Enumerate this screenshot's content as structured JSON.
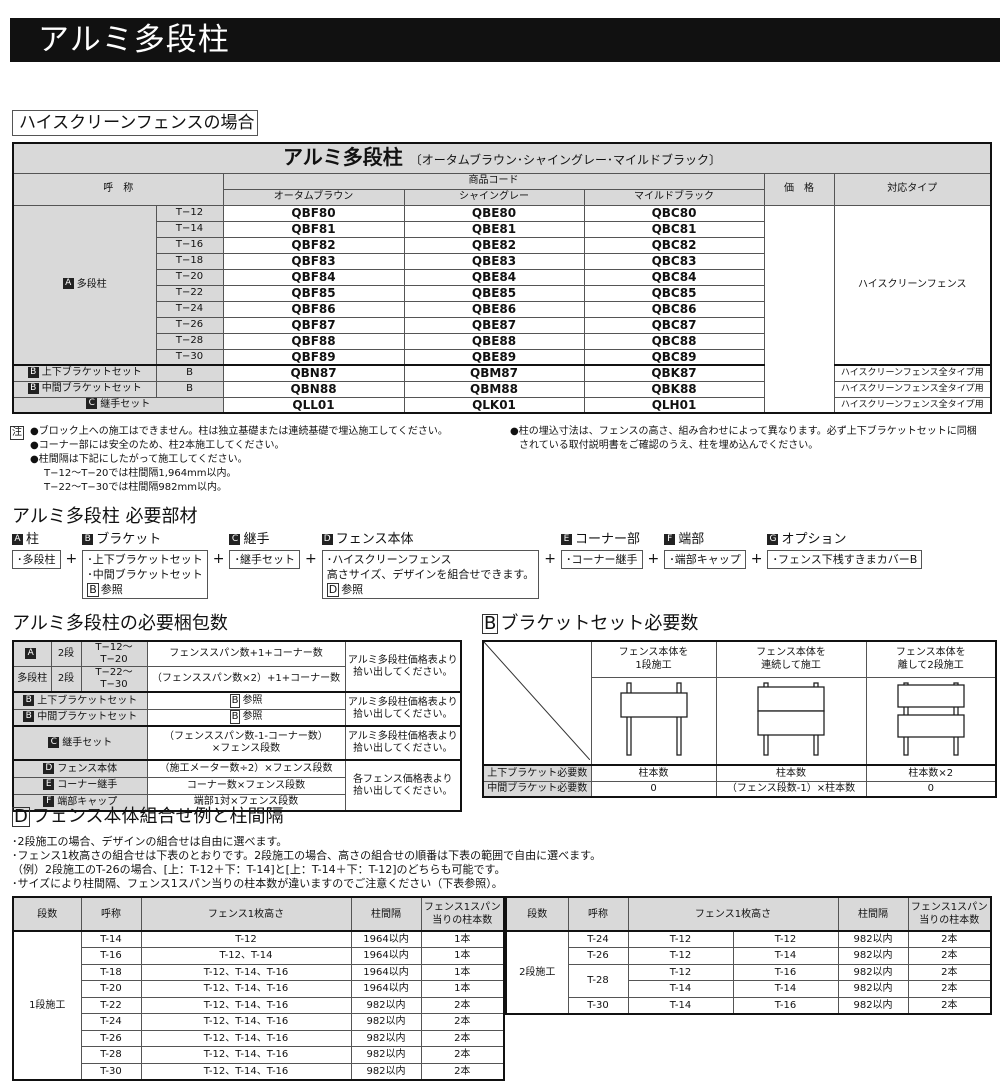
{
  "page_title": "アルミ多段柱",
  "subheading": "ハイスクリーンフェンスの場合",
  "main_table": {
    "title": "アルミ多段柱",
    "title_colors": "〔オータムブラウン･シャイングレー･マイルドブラック〕",
    "header_name": "呼　称",
    "header_code": "商品コード",
    "header_colors": [
      "オータムブラウン",
      "シャイングレー",
      "マイルドブラック"
    ],
    "header_price": "価　格",
    "header_type": "対応タイプ",
    "post_badge": "A",
    "post_label": "多段柱",
    "post_type": "ハイスクリーンフェンス",
    "post_rows": [
      {
        "size": "T−12",
        "codes": [
          "QBF80",
          "QBE80",
          "QBC80"
        ]
      },
      {
        "size": "T−14",
        "codes": [
          "QBF81",
          "QBE81",
          "QBC81"
        ]
      },
      {
        "size": "T−16",
        "codes": [
          "QBF82",
          "QBE82",
          "QBC82"
        ]
      },
      {
        "size": "T−18",
        "codes": [
          "QBF83",
          "QBE83",
          "QBC83"
        ]
      },
      {
        "size": "T−20",
        "codes": [
          "QBF84",
          "QBE84",
          "QBC84"
        ]
      },
      {
        "size": "T−22",
        "codes": [
          "QBF85",
          "QBE85",
          "QBC85"
        ]
      },
      {
        "size": "T−24",
        "codes": [
          "QBF86",
          "QBE86",
          "QBC86"
        ]
      },
      {
        "size": "T−26",
        "codes": [
          "QBF87",
          "QBE87",
          "QBC87"
        ]
      },
      {
        "size": "T−28",
        "codes": [
          "QBF88",
          "QBE88",
          "QBC88"
        ]
      },
      {
        "size": "T−30",
        "codes": [
          "QBF89",
          "QBE89",
          "QBC89"
        ]
      }
    ],
    "other_rows": [
      {
        "badge": "B",
        "label": "上下ブラケットセット",
        "size": "B",
        "codes": [
          "QBN87",
          "QBM87",
          "QBK87"
        ],
        "type": "ハイスクリーンフェンス全タイプ用"
      },
      {
        "badge": "B",
        "label": "中間ブラケットセット",
        "size": "B",
        "codes": [
          "QBN88",
          "QBM88",
          "QBK88"
        ],
        "type": "ハイスクリーンフェンス全タイプ用"
      },
      {
        "badge": "C",
        "label": "継手セット",
        "size": "",
        "codes": [
          "QLL01",
          "QLK01",
          "QLH01"
        ],
        "type": "ハイスクリーンフェンス全タイプ用"
      }
    ]
  },
  "notes": {
    "mark": "注",
    "left": [
      "●ブロック上への施工はできません。柱は独立基礎または連続基礎で埋込施工してください。",
      "●コーナー部には安全のため、柱2本施工してください。",
      "●柱間隔は下記にしたがって施工してください。",
      "T−12〜T−20では柱間隔1,964mm以内。",
      "T−22〜T−30では柱間隔982mm以内。"
    ],
    "right": [
      "●柱の埋込寸法は、フェンスの高さ、組み合わせによって異なります。必ず上下ブラケットセットに同梱",
      "されている取付説明書をご確認のうえ、柱を埋め込んでください。"
    ]
  },
  "parts": {
    "title": "アルミ多段柱 必要部材",
    "groups": [
      {
        "badge": "A",
        "label": "柱",
        "items": [
          "･多段柱"
        ]
      },
      {
        "badge": "B",
        "label": "ブラケット",
        "items": [
          "･上下ブラケットセット",
          "･中間ブラケットセット"
        ],
        "ref": "B",
        "ref_text": "参照"
      },
      {
        "badge": "C",
        "label": "継手",
        "items": [
          "･継手セット"
        ]
      },
      {
        "badge": "D",
        "label": "フェンス本体",
        "items": [
          "･ハイスクリーンフェンス",
          "高さサイズ、デザインを組合せできます。"
        ],
        "ref": "D",
        "ref_text": "参照"
      },
      {
        "badge": "E",
        "label": "コーナー部",
        "items": [
          "･コーナー継手"
        ]
      },
      {
        "badge": "F",
        "label": "端部",
        "items": [
          "･端部キャップ"
        ]
      },
      {
        "badge": "G",
        "label": "オプション",
        "items": [
          "･フェンス下桟すきまカバーB"
        ]
      }
    ],
    "plus": "+"
  },
  "packing": {
    "title": "アルミ多段柱の必要梱包数",
    "post_badge": "A",
    "post_label": "多段柱",
    "post_rows": [
      {
        "steps": "2段",
        "range": "T−12〜T−20",
        "formula": "フェンススパン数+1+コーナー数"
      },
      {
        "steps": "2段",
        "range": "T−22〜T−30",
        "formula": "（フェンススパン数×2）+1+コーナー数"
      }
    ],
    "note_post": [
      "アルミ多段柱価格表より",
      "拾い出してください。"
    ],
    "bracket_rows": [
      {
        "badge": "B",
        "label": "上下ブラケットセット",
        "ref": "B",
        "ref_text": "参照"
      },
      {
        "badge": "B",
        "label": "中間ブラケットセット",
        "ref": "B",
        "ref_text": "参照"
      }
    ],
    "joint": {
      "badge": "C",
      "label": "継手セット",
      "formula": [
        "（フェンススパン数-1-コーナー数）",
        "×フェンス段数"
      ]
    },
    "fence_rows": [
      {
        "badge": "D",
        "label": "フェンス本体",
        "formula": "（施工メーター数÷2）×フェンス段数"
      },
      {
        "badge": "E",
        "label": "コーナー継手",
        "formula": "コーナー数×フェンス段数"
      },
      {
        "badge": "F",
        "label": "端部キャップ",
        "formula": "端部1対×フェンス段数"
      }
    ],
    "note_fence": [
      "各フェンス価格表より",
      "拾い出してください。"
    ]
  },
  "bracket": {
    "badge": "B",
    "title": "ブラケットセット必要数",
    "columns": [
      [
        "フェンス本体を",
        "1段施工"
      ],
      [
        "フェンス本体を",
        "連続して施工"
      ],
      [
        "フェンス本体を",
        "離して2段施工"
      ]
    ],
    "rows": [
      {
        "label": "上下ブラケット必要数",
        "values": [
          "柱本数",
          "柱本数",
          "柱本数×2"
        ]
      },
      {
        "label": "中間ブラケット必要数",
        "values": [
          "0",
          "（フェンス段数-1）×柱本数",
          "0"
        ]
      }
    ]
  },
  "combo": {
    "badge": "D",
    "title": "フェンス本体組合せ例と柱間隔",
    "notes": [
      "･2段施工の場合、デザインの組合せは自由に選べます。",
      "･フェンス1枚高さの組合せは下表のとおりです。2段施工の場合、高さの組合せの順番は下表の範囲で自由に選べます。",
      "（例）2段施工のT-26の場合、[上：T-12＋下：T-14]と[上：T-14＋下：T-12]のどちらも可能です。",
      "･サイズにより柱間隔、フェンス1スパン当りの柱本数が違いますのでご注意ください（下表参照）。"
    ],
    "headers": [
      "段数",
      "呼称",
      "フェンス1枚高さ",
      "柱間隔",
      "フェンス1スパン",
      "当りの柱本数"
    ],
    "one_step": {
      "label": "1段施工",
      "rows": [
        [
          "T-14",
          "T-12",
          "1964以内",
          "1本"
        ],
        [
          "T-16",
          "T-12、T-14",
          "1964以内",
          "1本"
        ],
        [
          "T-18",
          "T-12、T-14、T-16",
          "1964以内",
          "1本"
        ],
        [
          "T-20",
          "T-12、T-14、T-16",
          "1964以内",
          "1本"
        ],
        [
          "T-22",
          "T-12、T-14、T-16",
          "982以内",
          "2本"
        ],
        [
          "T-24",
          "T-12、T-14、T-16",
          "982以内",
          "2本"
        ],
        [
          "T-26",
          "T-12、T-14、T-16",
          "982以内",
          "2本"
        ],
        [
          "T-28",
          "T-12、T-14、T-16",
          "982以内",
          "2本"
        ],
        [
          "T-30",
          "T-12、T-14、T-16",
          "982以内",
          "2本"
        ]
      ]
    },
    "two_step": {
      "label": "2段施工",
      "rows": [
        [
          "T-24",
          "T-12",
          "T-12",
          "982以内",
          "2本"
        ],
        [
          "T-26",
          "T-12",
          "T-14",
          "982以内",
          "2本"
        ],
        [
          "T-28",
          "T-12",
          "T-16",
          "982以内",
          "2本"
        ],
        [
          "",
          "T-14",
          "T-14",
          "982以内",
          "2本"
        ],
        [
          "T-30",
          "T-14",
          "T-16",
          "982以内",
          "2本"
        ]
      ]
    }
  }
}
